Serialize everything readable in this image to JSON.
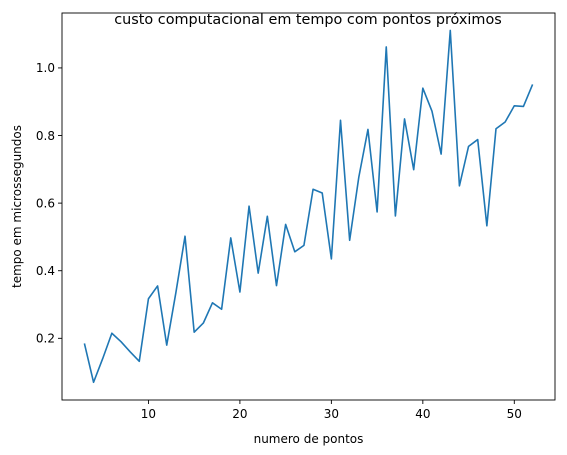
{
  "chart_data": {
    "type": "line",
    "title": "custo computacional em tempo com pontos próximos",
    "xlabel": "numero de pontos",
    "ylabel": "tempo em microssegundos",
    "xlim": [
      0.55,
      54.45
    ],
    "ylim": [
      0.0175,
      1.1625
    ],
    "xticks": [
      10,
      20,
      30,
      40,
      50
    ],
    "yticks": [
      0.2,
      0.4,
      0.6,
      0.8,
      1.0
    ],
    "xtick_labels": [
      "10",
      "20",
      "30",
      "40",
      "50"
    ],
    "ytick_labels": [
      "0.2",
      "0.4",
      "0.6",
      "0.8",
      "1.0"
    ],
    "grid": false,
    "color": "#1f77b4",
    "series": [
      {
        "x": [
          3,
          4,
          5,
          6,
          7,
          8,
          9,
          10,
          11,
          12,
          13,
          14,
          15,
          16,
          17,
          18,
          19,
          20,
          21,
          22,
          23,
          24,
          25,
          26,
          27,
          28,
          29,
          30,
          31,
          32,
          33,
          34,
          35,
          36,
          37,
          38,
          39,
          40,
          41,
          42,
          43,
          44,
          45,
          46,
          47,
          48,
          49,
          50,
          51,
          52
        ],
        "y": [
          0.185,
          0.07,
          0.14,
          0.215,
          0.19,
          0.16,
          0.132,
          0.317,
          0.355,
          0.18,
          0.335,
          0.502,
          0.218,
          0.245,
          0.305,
          0.286,
          0.497,
          0.337,
          0.591,
          0.393,
          0.561,
          0.356,
          0.537,
          0.456,
          0.475,
          0.641,
          0.63,
          0.435,
          0.845,
          0.49,
          0.677,
          0.818,
          0.574,
          1.062,
          0.562,
          0.849,
          0.699,
          0.94,
          0.872,
          0.745,
          1.111,
          0.651,
          0.768,
          0.788,
          0.533,
          0.82,
          0.84,
          0.888,
          0.886,
          0.951
        ]
      }
    ]
  }
}
